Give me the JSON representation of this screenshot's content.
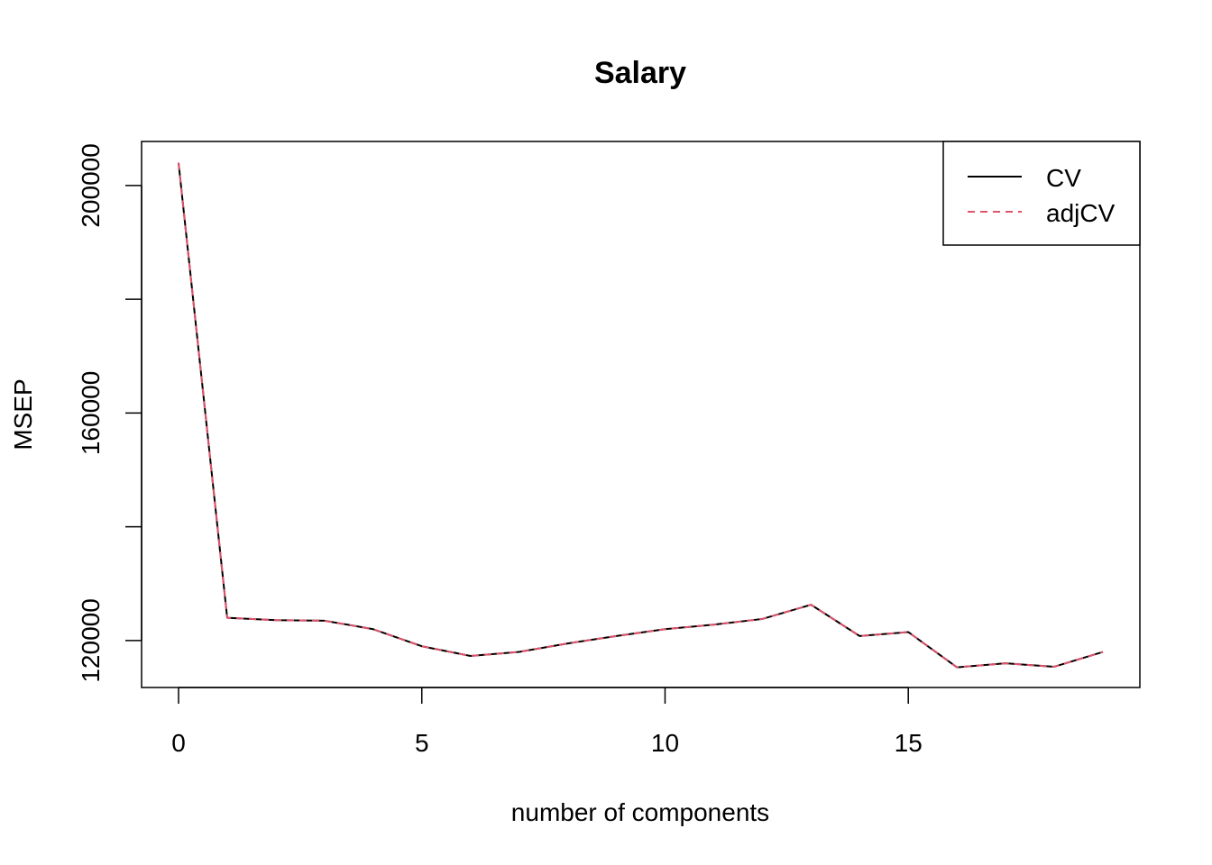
{
  "chart_data": {
    "type": "line",
    "title": "Salary",
    "xlabel": "number of components",
    "ylabel": "MSEP",
    "x": [
      0,
      1,
      2,
      3,
      4,
      5,
      6,
      7,
      8,
      9,
      10,
      11,
      12,
      13,
      14,
      15,
      16,
      17,
      18,
      19
    ],
    "series": [
      {
        "name": "CV",
        "color": "#000000",
        "line_style": "solid",
        "values": [
          204000,
          124000,
          123600,
          123500,
          122000,
          119000,
          117300,
          118000,
          119500,
          120800,
          122000,
          122800,
          123800,
          126300,
          120800,
          121500,
          115300,
          116000,
          115400,
          118000
        ]
      },
      {
        "name": "adjCV",
        "color": "#DF536B",
        "line_style": "dashed",
        "values": [
          204000,
          124000,
          123600,
          123500,
          122000,
          119000,
          117300,
          118000,
          119500,
          120800,
          122000,
          122800,
          123800,
          126300,
          120800,
          121500,
          115300,
          116000,
          115400,
          118000
        ]
      }
    ],
    "xlim": [
      -0.76,
      19.76
    ],
    "ylim": [
      111750,
      207750
    ],
    "x_ticks": [
      0,
      5,
      10,
      15
    ],
    "x_tick_labels": [
      "0",
      "5",
      "10",
      "15"
    ],
    "y_ticks": [
      120000,
      140000,
      160000,
      180000,
      200000
    ],
    "y_tick_labels": [
      "120000",
      "",
      "160000",
      "",
      "200000"
    ],
    "grid": false,
    "legend_position": "top-right"
  }
}
